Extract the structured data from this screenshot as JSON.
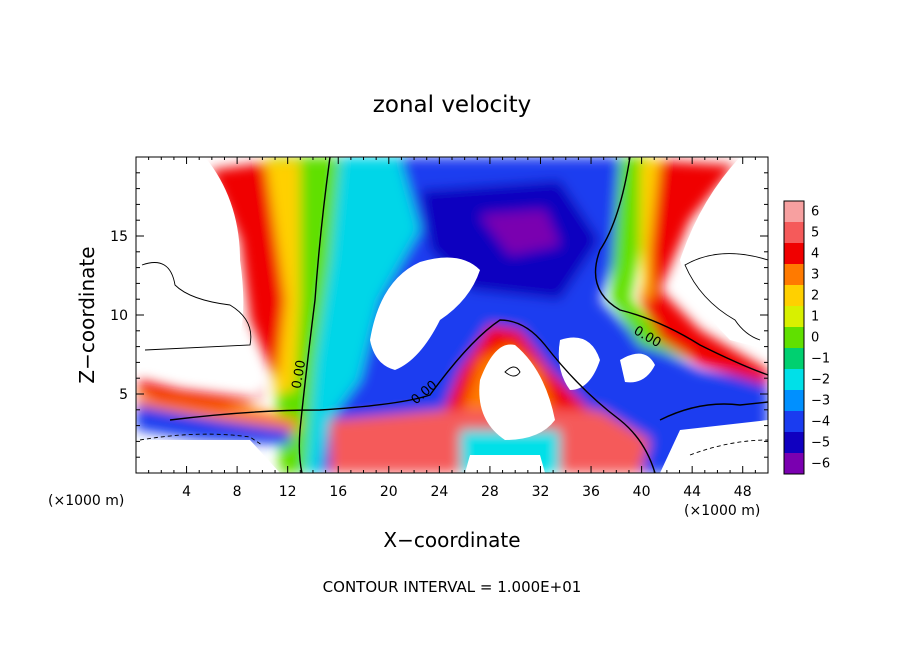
{
  "chart_data": {
    "type": "heatmap",
    "title": "zonal velocity",
    "xlabel": "X−coordinate",
    "ylabel": "Z−coordinate",
    "x_unit_left": "(×1000 m)",
    "x_unit_right": "(×1000 m)",
    "footer": "CONTOUR INTERVAL = 1.000E+01",
    "xlim": [
      0,
      50
    ],
    "ylim": [
      0,
      20
    ],
    "x_ticks": [
      4,
      8,
      12,
      16,
      20,
      24,
      28,
      32,
      36,
      40,
      44,
      48
    ],
    "x_tick_labels": [
      "4",
      "8",
      "12",
      "16",
      "20",
      "24",
      "28",
      "32",
      "36",
      "40",
      "44",
      "48"
    ],
    "y_ticks": [
      5,
      10,
      15
    ],
    "y_tick_labels": [
      "5",
      "10",
      "15"
    ],
    "colorbar": {
      "values": [
        6,
        5,
        4,
        3,
        2,
        1,
        0,
        -1,
        -2,
        -3,
        -4,
        -5,
        -6
      ],
      "labels": [
        "6",
        "5",
        "4",
        "3",
        "2",
        "1",
        "0",
        "−1",
        "−2",
        "−3",
        "−4",
        "−5",
        "−6"
      ],
      "colors": [
        "#f7a0a0",
        "#f55a5a",
        "#f00000",
        "#ff7a00",
        "#ffd000",
        "#d8f000",
        "#60e000",
        "#00d070",
        "#00e0e8",
        "#0090ff",
        "#1a3cf0",
        "#1000c0",
        "#7a00b0"
      ]
    },
    "contour_labels": [
      {
        "text": "0.00",
        "x": 13.2,
        "z": 6.2,
        "angle": -80
      },
      {
        "text": "0.00",
        "x": 23.0,
        "z": 4.9,
        "angle": -40
      },
      {
        "text": "0.00",
        "x": 40.3,
        "z": 8.4,
        "angle": 30
      }
    ]
  }
}
